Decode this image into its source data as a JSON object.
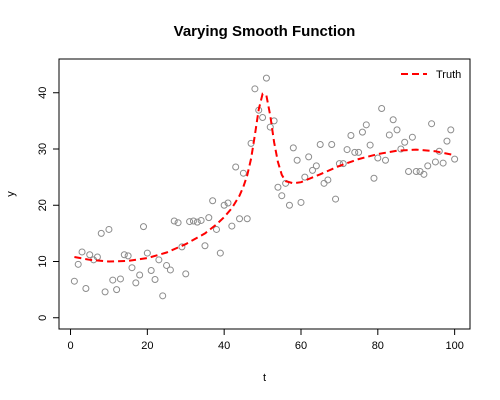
{
  "chart_data": {
    "type": "scatter",
    "title": "Varying Smooth Function",
    "xlabel": "t",
    "ylabel": "y",
    "xlim": [
      -3,
      104
    ],
    "ylim": [
      -2,
      46
    ],
    "x_ticks": [
      0,
      20,
      40,
      60,
      80,
      100
    ],
    "y_ticks": [
      0,
      10,
      20,
      30,
      40
    ],
    "grid": false,
    "legend": {
      "position": "top-right",
      "entries": [
        "Truth"
      ]
    },
    "colors": {
      "points": "#8c8c8c",
      "truth": "#ff0000"
    },
    "series": [
      {
        "type": "scatter",
        "points": [
          [
            1,
            6.5
          ],
          [
            2,
            9.5
          ],
          [
            3,
            11.7
          ],
          [
            4,
            5.2
          ],
          [
            5,
            11.2
          ],
          [
            6,
            10.3
          ],
          [
            7,
            10.8
          ],
          [
            8,
            15.0
          ],
          [
            9,
            4.6
          ],
          [
            10,
            15.7
          ],
          [
            11,
            6.7
          ],
          [
            12,
            5.0
          ],
          [
            13,
            6.9
          ],
          [
            14,
            11.2
          ],
          [
            15,
            11.0
          ],
          [
            16,
            8.9
          ],
          [
            17,
            6.2
          ],
          [
            18,
            7.6
          ],
          [
            19,
            16.2
          ],
          [
            20,
            11.5
          ],
          [
            21,
            8.4
          ],
          [
            22,
            6.8
          ],
          [
            23,
            10.3
          ],
          [
            24,
            3.9
          ],
          [
            25,
            9.3
          ],
          [
            26,
            8.5
          ],
          [
            27,
            17.2
          ],
          [
            28,
            16.9
          ],
          [
            29,
            12.6
          ],
          [
            30,
            7.8
          ],
          [
            31,
            17.1
          ],
          [
            32,
            17.2
          ],
          [
            33,
            17.0
          ],
          [
            34,
            17.3
          ],
          [
            35,
            12.8
          ],
          [
            36,
            17.8
          ],
          [
            37,
            20.8
          ],
          [
            38,
            15.7
          ],
          [
            39,
            11.5
          ],
          [
            40,
            20.0
          ],
          [
            41,
            20.4
          ],
          [
            42,
            16.3
          ],
          [
            43,
            26.8
          ],
          [
            44,
            17.6
          ],
          [
            45,
            25.7
          ],
          [
            46,
            17.6
          ],
          [
            47,
            31.0
          ],
          [
            48,
            40.7
          ],
          [
            49,
            36.9
          ],
          [
            50,
            35.6
          ],
          [
            51,
            42.6
          ],
          [
            52,
            33.9
          ],
          [
            53,
            35.0
          ],
          [
            54,
            23.2
          ],
          [
            55,
            21.7
          ],
          [
            56,
            23.9
          ],
          [
            57,
            20.0
          ],
          [
            58,
            30.2
          ],
          [
            59,
            28.0
          ],
          [
            60,
            20.5
          ],
          [
            61,
            25.0
          ],
          [
            62,
            28.6
          ],
          [
            63,
            26.2
          ],
          [
            64,
            27.0
          ],
          [
            65,
            30.8
          ],
          [
            66,
            23.9
          ],
          [
            67,
            24.5
          ],
          [
            68,
            30.8
          ],
          [
            69,
            21.1
          ],
          [
            70,
            27.4
          ],
          [
            71,
            27.4
          ],
          [
            72,
            29.9
          ],
          [
            73,
            32.4
          ],
          [
            74,
            29.4
          ],
          [
            75,
            29.4
          ],
          [
            76,
            33.0
          ],
          [
            77,
            34.3
          ],
          [
            78,
            30.7
          ],
          [
            79,
            24.8
          ],
          [
            80,
            28.4
          ],
          [
            81,
            37.2
          ],
          [
            82,
            28.0
          ],
          [
            83,
            32.5
          ],
          [
            84,
            35.2
          ],
          [
            85,
            33.4
          ],
          [
            86,
            30.0
          ],
          [
            87,
            31.2
          ],
          [
            88,
            26.0
          ],
          [
            89,
            32.1
          ],
          [
            90,
            26.0
          ],
          [
            91,
            26.0
          ],
          [
            92,
            25.5
          ],
          [
            93,
            27.0
          ],
          [
            94,
            34.5
          ],
          [
            95,
            27.7
          ],
          [
            96,
            29.6
          ],
          [
            97,
            27.5
          ],
          [
            98,
            31.4
          ],
          [
            99,
            33.4
          ],
          [
            100,
            28.2
          ]
        ]
      },
      {
        "name": "Truth",
        "type": "line",
        "style": "dashed",
        "points": [
          [
            1,
            10.8
          ],
          [
            5,
            10.3
          ],
          [
            10,
            10.0
          ],
          [
            15,
            10.1
          ],
          [
            20,
            10.6
          ],
          [
            25,
            11.6
          ],
          [
            30,
            13.1
          ],
          [
            35,
            15.0
          ],
          [
            38,
            16.6
          ],
          [
            40,
            17.9
          ],
          [
            42,
            19.5
          ],
          [
            44,
            21.7
          ],
          [
            45,
            23.3
          ],
          [
            46,
            25.3
          ],
          [
            47,
            28.3
          ],
          [
            48,
            32.5
          ],
          [
            49,
            37.0
          ],
          [
            50,
            39.8
          ],
          [
            51,
            39.5
          ],
          [
            52,
            35.9
          ],
          [
            53,
            31.2
          ],
          [
            54,
            27.7
          ],
          [
            55,
            25.4
          ],
          [
            56,
            24.3
          ],
          [
            58,
            23.9
          ],
          [
            60,
            24.1
          ],
          [
            65,
            25.5
          ],
          [
            70,
            27.0
          ],
          [
            75,
            28.2
          ],
          [
            80,
            29.1
          ],
          [
            85,
            29.7
          ],
          [
            90,
            29.9
          ],
          [
            95,
            29.6
          ],
          [
            100,
            28.9
          ]
        ]
      }
    ]
  }
}
